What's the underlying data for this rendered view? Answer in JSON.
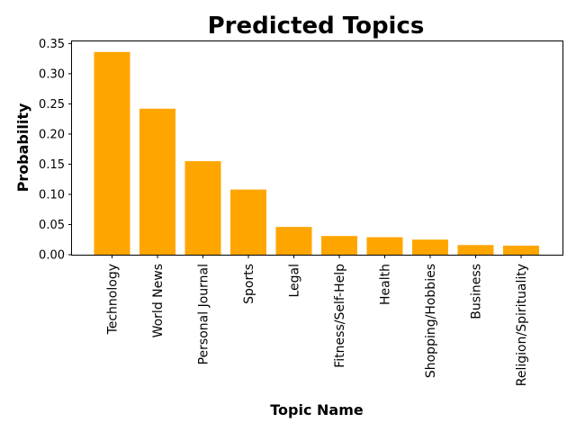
{
  "chart_data": {
    "type": "bar",
    "title": "Predicted Topics",
    "xlabel": "Topic Name",
    "ylabel": "Probability",
    "ylim": [
      0,
      0.355
    ],
    "yticks": [
      "0.00",
      "0.05",
      "0.10",
      "0.15",
      "0.20",
      "0.25",
      "0.30",
      "0.35"
    ],
    "grid": false,
    "categories": [
      "Technology",
      "World News",
      "Personal Journal",
      "Sports",
      "Legal",
      "Fitness/Self-Help",
      "Health",
      "Shopping/Hobbies",
      "Business",
      "Religion/Spirituality"
    ],
    "values": [
      0.336,
      0.242,
      0.155,
      0.108,
      0.046,
      0.031,
      0.029,
      0.025,
      0.016,
      0.015
    ],
    "colors": {
      "bar": "#FFA500",
      "axis": "#000000",
      "background": "#FFFFFF"
    }
  }
}
